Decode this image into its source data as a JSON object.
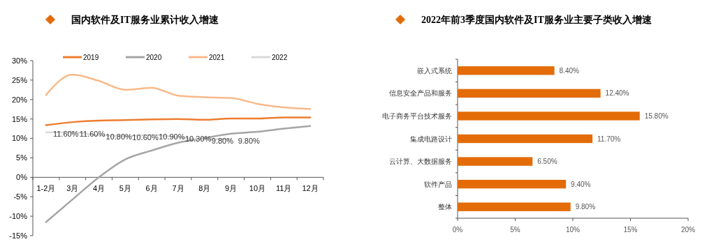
{
  "chart_data": [
    {
      "type": "line",
      "title": "国内软件及IT服务业累计收入增速",
      "categories": [
        "1-2月",
        "3月",
        "4月",
        "5月",
        "6月",
        "7月",
        "8月",
        "9月",
        "10月",
        "11月",
        "12月"
      ],
      "ylim": [
        -15,
        30
      ],
      "yticks": [
        {
          "value": -15,
          "label": "-15%"
        },
        {
          "value": -10,
          "label": "-10%"
        },
        {
          "value": -5,
          "label": "-5%"
        },
        {
          "value": 0,
          "label": "0%"
        },
        {
          "value": 5,
          "label": "5%"
        },
        {
          "value": 10,
          "label": "10%"
        },
        {
          "value": 15,
          "label": "15%"
        },
        {
          "value": 20,
          "label": "20%"
        },
        {
          "value": 25,
          "label": "25%"
        },
        {
          "value": 30,
          "label": "30%"
        }
      ],
      "grid": false,
      "legend": "top",
      "marker": "none",
      "series": [
        {
          "name": "2019",
          "color": "#ed7d31",
          "values": [
            13.4,
            14.2,
            14.6,
            14.7,
            14.9,
            15.0,
            14.8,
            15.1,
            15.1,
            15.4,
            15.4
          ]
        },
        {
          "name": "2020",
          "color": "#a5a5a5",
          "values": [
            -11.5,
            -5.7,
            0.0,
            4.6,
            6.9,
            8.9,
            10.1,
            11.2,
            11.7,
            12.5,
            13.2
          ]
        },
        {
          "name": "2021",
          "color": "#f8b98a",
          "values": [
            21.2,
            26.4,
            24.8,
            22.5,
            23.0,
            21.0,
            20.6,
            20.4,
            18.9,
            18.0,
            17.6
          ]
        },
        {
          "name": "2022",
          "color": "#d9d9d9",
          "values": [
            11.6,
            11.6,
            10.8,
            10.6,
            10.9,
            10.3,
            9.8,
            9.8,
            null,
            null,
            null
          ],
          "value_labels": [
            "11.60%",
            "11.60%",
            "10.80%",
            "10.60%",
            "10.90%",
            "10.30%",
            "9.80%",
            "9.80%",
            null,
            null,
            null
          ]
        }
      ]
    },
    {
      "type": "bar",
      "orientation": "horizontal",
      "title": "2022年前3季度国内软件及IT服务业主要子类收入增速",
      "categories": [
        "嵌入式系统",
        "信息安全产品和服务",
        "电子商务平台技术服务",
        "集成电路设计",
        "云计算、大数据服务",
        "软件产品",
        "整体"
      ],
      "values": [
        8.4,
        12.4,
        15.8,
        11.7,
        6.5,
        9.4,
        9.8
      ],
      "value_labels": [
        "8.40%",
        "12.40%",
        "15.80%",
        "11.70%",
        "6.50%",
        "9.40%",
        "9.80%"
      ],
      "color": "#e36c09",
      "xlim": [
        0,
        20
      ],
      "xticks": [
        {
          "value": 0,
          "label": "0%"
        },
        {
          "value": 5,
          "label": "5%"
        },
        {
          "value": 10,
          "label": "10%"
        },
        {
          "value": 15,
          "label": "15%"
        },
        {
          "value": 20,
          "label": "20%"
        }
      ],
      "grid": false
    }
  ]
}
